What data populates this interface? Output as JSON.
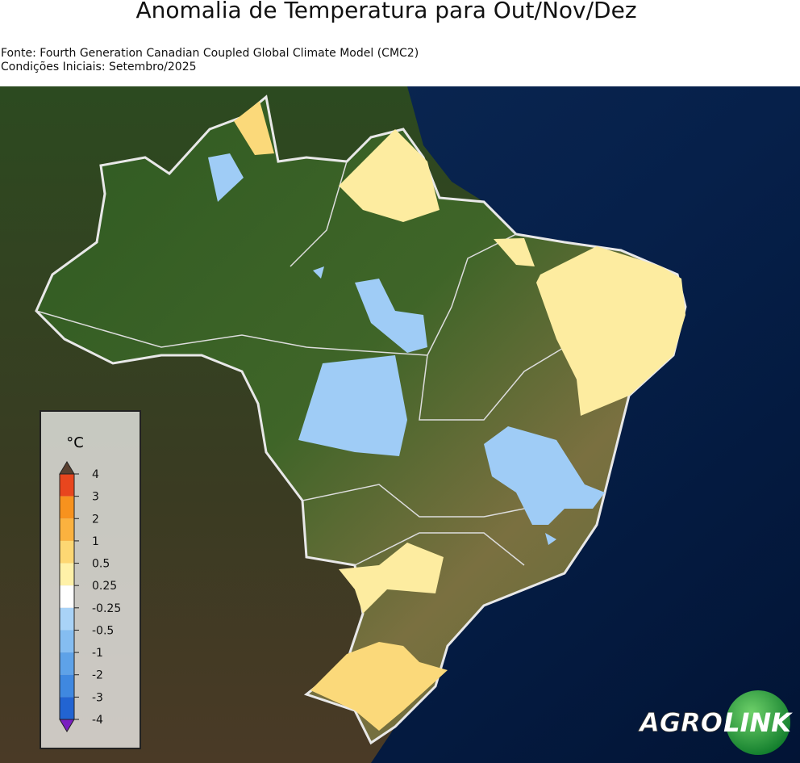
{
  "header": {
    "title": "Anomalia de Temperatura para Out/Nov/Dez",
    "source": "Fonte: Fourth Generation Canadian Coupled Global Climate Model (CMC2)",
    "initial_conditions": "Condições Iniciais: Setembro/2025"
  },
  "legend": {
    "unit": "°C",
    "ticks": [
      4,
      3,
      2,
      1,
      0.5,
      0.25,
      -0.25,
      -0.5,
      -1,
      -2,
      -3,
      -4
    ],
    "colors": [
      "#e8461e",
      "#f7921e",
      "#fbb23f",
      "#fdd773",
      "#fff1a8",
      "#ffffff",
      "#a9d3f7",
      "#85bdf1",
      "#5ea2e8",
      "#3f88e0",
      "#2264d2"
    ]
  },
  "logo": {
    "left": "AGRO",
    "right": "LINK"
  }
}
